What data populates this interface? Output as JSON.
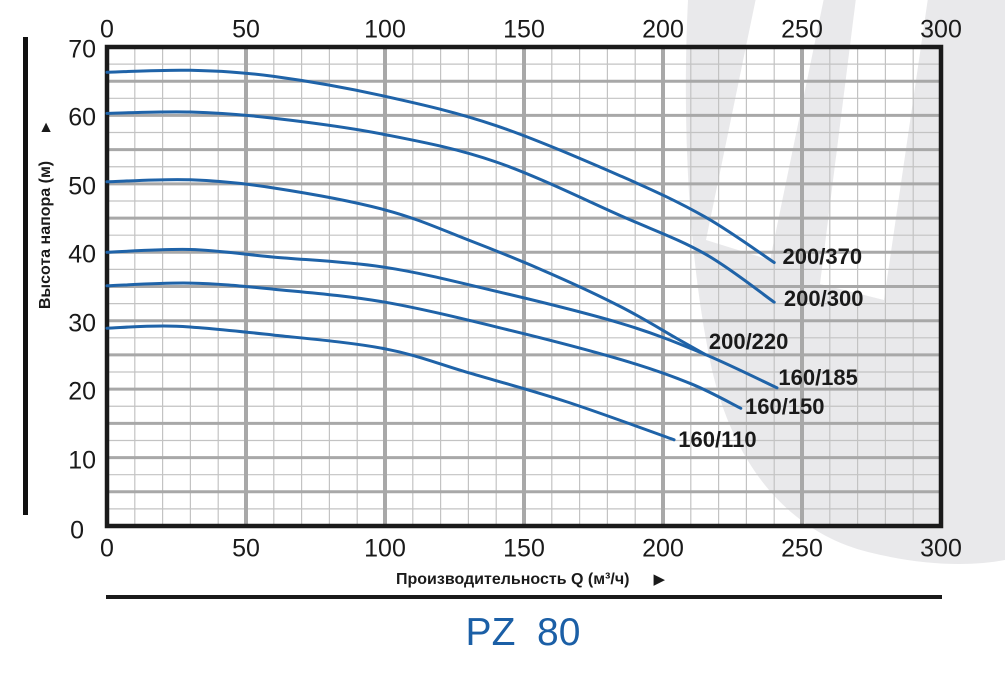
{
  "page_title": "PZ  80",
  "icons": {
    "y_axis_arrow": "▲",
    "x_axis_arrow": "▶"
  },
  "colors": {
    "curve": "#1f63a8",
    "title_blue": "#1b5fa6",
    "grid_minor": "#c3c3c3",
    "grid_major": "#a8a8a8",
    "axis_border": "#1a1a1a",
    "text": "#1a1a1a",
    "watermark_gray": "#e9e9eb"
  },
  "chart_data": {
    "type": "line",
    "title": "PZ 80",
    "xlabel": "Производительность Q (м³/ч)",
    "ylabel": "Высота напора (м)",
    "xlim": [
      0,
      300
    ],
    "ylim": [
      0,
      70
    ],
    "x_ticks_top": [
      0,
      50,
      100,
      150,
      200,
      250,
      300
    ],
    "x_ticks_bottom": [
      0,
      50,
      100,
      150,
      200,
      250,
      300
    ],
    "y_ticks": [
      0,
      10,
      20,
      30,
      40,
      50,
      60,
      70
    ],
    "x_minor_step": 10,
    "x_major_step": 50,
    "y_minor_step": 2.5,
    "y_major_step": 5,
    "grid": true,
    "legend": "inline-labels-at-curve-ends",
    "series": [
      {
        "name": "200/370",
        "points": [
          [
            0,
            66.3
          ],
          [
            30,
            66.6
          ],
          [
            60,
            65.7
          ],
          [
            100,
            62.8
          ],
          [
            140,
            58.5
          ],
          [
            185,
            51.1
          ],
          [
            215,
            45.2
          ],
          [
            240,
            38.5
          ]
        ],
        "label_at": [
          243,
          39.3
        ]
      },
      {
        "name": "200/300",
        "points": [
          [
            0,
            60.3
          ],
          [
            30,
            60.5
          ],
          [
            60,
            59.6
          ],
          [
            100,
            57.2
          ],
          [
            140,
            53.2
          ],
          [
            185,
            45.3
          ],
          [
            215,
            39.8
          ],
          [
            240,
            32.7
          ]
        ],
        "label_at": [
          243.5,
          33.2
        ]
      },
      {
        "name": "200/220",
        "points": [
          [
            0,
            50.3
          ],
          [
            30,
            50.6
          ],
          [
            60,
            49.4
          ],
          [
            100,
            46.2
          ],
          [
            130,
            41.8
          ],
          [
            160,
            36.8
          ],
          [
            185,
            32.0
          ],
          [
            205,
            27.4
          ],
          [
            215,
            25.1
          ]
        ],
        "label_at": [
          216.5,
          26.9
        ]
      },
      {
        "name": "160/185",
        "points": [
          [
            0,
            40.0
          ],
          [
            30,
            40.4
          ],
          [
            60,
            39.3
          ],
          [
            100,
            37.8
          ],
          [
            140,
            34.3
          ],
          [
            185,
            29.6
          ],
          [
            215,
            25.1
          ],
          [
            241,
            20.2
          ]
        ],
        "label_at": [
          241.5,
          21.6
        ]
      },
      {
        "name": "160/150",
        "points": [
          [
            0,
            35.1
          ],
          [
            30,
            35.5
          ],
          [
            60,
            34.6
          ],
          [
            100,
            32.7
          ],
          [
            145,
            28.6
          ],
          [
            185,
            24.3
          ],
          [
            210,
            20.8
          ],
          [
            228,
            17.2
          ]
        ],
        "label_at": [
          229.5,
          17.4
        ]
      },
      {
        "name": "160/110",
        "points": [
          [
            0,
            28.9
          ],
          [
            25,
            29.2
          ],
          [
            60,
            27.9
          ],
          [
            100,
            25.9
          ],
          [
            130,
            22.4
          ],
          [
            165,
            18.2
          ],
          [
            204,
            12.6
          ]
        ],
        "label_at": [
          205.5,
          12.6
        ]
      }
    ]
  }
}
